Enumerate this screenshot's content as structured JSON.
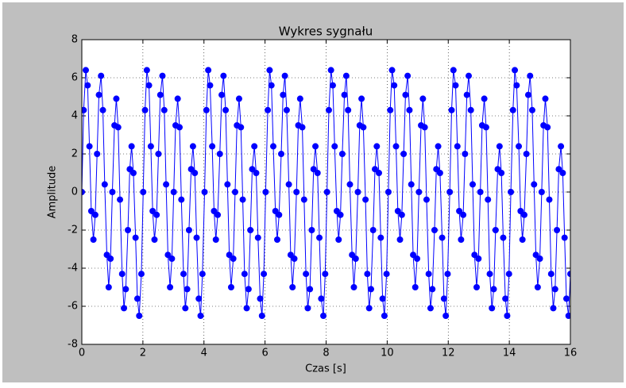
{
  "chart_data": {
    "type": "line",
    "title": "Wykres sygnału",
    "x_label": "Czas [s]",
    "y_label": "Amplitude",
    "x": [
      0,
      0.06,
      0.13,
      0.19,
      0.25,
      0.31,
      0.38,
      0.44,
      0.5,
      0.56,
      0.63,
      0.69,
      0.75,
      0.82,
      0.88,
      0.94,
      1.0,
      1.07,
      1.13,
      1.19,
      1.25,
      1.32,
      1.38,
      1.44,
      1.51,
      1.57,
      1.63,
      1.69,
      1.76,
      1.82,
      1.88,
      1.95,
      2.01,
      2.07,
      2.13,
      2.2,
      2.26,
      2.32,
      2.38,
      2.45,
      2.51,
      2.57,
      2.64,
      2.7,
      2.76,
      2.82,
      2.89,
      2.95,
      3.01,
      3.07,
      3.14,
      3.2,
      3.26,
      3.33,
      3.39,
      3.45,
      3.51,
      3.58,
      3.64,
      3.7,
      3.76,
      3.83,
      3.89,
      3.95,
      4.02,
      4.08,
      4.14,
      4.2,
      4.27,
      4.33,
      4.39,
      4.45,
      4.52,
      4.58,
      4.64,
      4.71,
      4.77,
      4.83,
      4.89,
      4.96,
      5.02,
      5.08,
      5.15,
      5.21,
      5.27,
      5.33,
      5.4,
      5.46,
      5.52,
      5.58,
      5.65,
      5.71,
      5.77,
      5.84,
      5.9,
      5.96,
      6.02,
      6.09,
      6.15,
      6.21,
      6.27,
      6.34,
      6.4,
      6.46,
      6.53,
      6.59,
      6.65,
      6.71,
      6.78,
      6.84,
      6.9,
      6.96,
      7.03,
      7.09,
      7.15,
      7.22,
      7.28,
      7.34,
      7.4,
      7.47,
      7.53,
      7.59,
      7.65,
      7.72,
      7.78,
      7.84,
      7.91,
      7.97,
      8.03,
      8.09,
      8.16,
      8.22,
      8.28,
      8.35,
      8.41,
      8.47,
      8.53,
      8.6,
      8.66,
      8.72,
      8.78,
      8.85,
      8.91,
      8.97,
      9.04,
      9.1,
      9.16,
      9.22,
      9.29,
      9.35,
      9.41,
      9.47,
      9.54,
      9.6,
      9.66,
      9.73,
      9.79,
      9.85,
      9.91,
      9.98,
      10.04,
      10.1,
      10.16,
      10.23,
      10.29,
      10.35,
      10.42,
      10.48,
      10.54,
      10.6,
      10.67,
      10.73,
      10.79,
      10.85,
      10.92,
      10.98,
      11.04,
      11.11,
      11.17,
      11.23,
      11.29,
      11.36,
      11.42,
      11.48,
      11.55,
      11.61,
      11.67,
      11.73,
      11.8,
      11.86,
      11.92,
      11.98,
      12.05,
      12.11,
      12.17,
      12.24,
      12.3,
      12.36,
      12.42,
      12.49,
      12.55,
      12.61,
      12.67,
      12.74,
      12.8,
      12.86,
      12.93,
      12.99,
      13.05,
      13.11,
      13.18,
      13.24,
      13.3,
      13.36,
      13.43,
      13.49,
      13.55,
      13.62,
      13.68,
      13.74,
      13.8,
      13.87,
      13.93,
      13.99,
      14.05,
      14.12,
      14.18,
      14.24,
      14.31,
      14.37,
      14.43,
      14.49,
      14.56,
      14.62,
      14.68,
      14.75,
      14.81,
      14.87,
      14.93,
      15.0,
      15.06,
      15.12,
      15.18,
      15.25,
      15.31,
      15.37,
      15.44,
      15.5,
      15.56,
      15.62,
      15.69,
      15.75,
      15.81,
      15.87,
      15.94,
      16
    ],
    "series": [
      {
        "color": "#0000ff",
        "marker": "o",
        "values": [
          0,
          4.3,
          6.4,
          5.6,
          2.4,
          -1.0,
          -2.5,
          -1.2,
          2.0,
          5.1,
          6.1,
          4.3,
          0.4,
          -3.3,
          -5.0,
          -3.5,
          0.0,
          3.5,
          4.9,
          3.4,
          -0.4,
          -4.3,
          -6.1,
          -5.1,
          -2.0,
          1.2,
          2.4,
          1.0,
          -2.4,
          -5.6,
          -6.5,
          -4.3,
          0,
          4.3,
          6.4,
          5.6,
          2.4,
          -1.0,
          -2.5,
          -1.2,
          2.0,
          5.1,
          6.1,
          4.3,
          0.4,
          -3.3,
          -5.0,
          -3.5,
          0.0,
          3.5,
          4.9,
          3.4,
          -0.4,
          -4.3,
          -6.1,
          -5.1,
          -2.0,
          1.2,
          2.4,
          1.0,
          -2.4,
          -5.6,
          -6.5,
          -4.3,
          0,
          4.3,
          6.4,
          5.6,
          2.4,
          -1.0,
          -2.5,
          -1.2,
          2.0,
          5.1,
          6.1,
          4.3,
          0.4,
          -3.3,
          -5.0,
          -3.5,
          0.0,
          3.5,
          4.9,
          3.4,
          -0.4,
          -4.3,
          -6.1,
          -5.1,
          -2.0,
          1.2,
          2.4,
          1.0,
          -2.4,
          -5.6,
          -6.5,
          -4.3,
          0,
          4.3,
          6.4,
          5.6,
          2.4,
          -1.0,
          -2.5,
          -1.2,
          2.0,
          5.1,
          6.1,
          4.3,
          0.4,
          -3.3,
          -5.0,
          -3.5,
          0.0,
          3.5,
          4.9,
          3.4,
          -0.4,
          -4.3,
          -6.1,
          -5.1,
          -2.0,
          1.2,
          2.4,
          1.0,
          -2.4,
          -5.6,
          -6.5,
          -4.3,
          0,
          4.3,
          6.4,
          5.6,
          2.4,
          -1.0,
          -2.5,
          -1.2,
          2.0,
          5.1,
          6.1,
          4.3,
          0.4,
          -3.3,
          -5.0,
          -3.5,
          0.0,
          3.5,
          4.9,
          3.4,
          -0.4,
          -4.3,
          -6.1,
          -5.1,
          -2.0,
          1.2,
          2.4,
          1.0,
          -2.4,
          -5.6,
          -6.5,
          -4.3,
          0,
          4.3,
          6.4,
          5.6,
          2.4,
          -1.0,
          -2.5,
          -1.2,
          2.0,
          5.1,
          6.1,
          4.3,
          0.4,
          -3.3,
          -5.0,
          -3.5,
          0.0,
          3.5,
          4.9,
          3.4,
          -0.4,
          -4.3,
          -6.1,
          -5.1,
          -2.0,
          1.2,
          2.4,
          1.0,
          -2.4,
          -5.6,
          -6.5,
          -4.3,
          0,
          4.3,
          6.4,
          5.6,
          2.4,
          -1.0,
          -2.5,
          -1.2,
          2.0,
          5.1,
          6.1,
          4.3,
          0.4,
          -3.3,
          -5.0,
          -3.5,
          0.0,
          3.5,
          4.9,
          3.4,
          -0.4,
          -4.3,
          -6.1,
          -5.1,
          -2.0,
          1.2,
          2.4,
          1.0,
          -2.4,
          -5.6,
          -6.5,
          -4.3,
          0,
          4.3,
          6.4,
          5.6,
          2.4,
          -1.0,
          -2.5,
          -1.2,
          2.0,
          5.1,
          6.1,
          4.3,
          0.4,
          -3.3,
          -5.0,
          -3.5,
          0.0,
          3.5,
          4.9,
          3.4,
          -0.4,
          -4.3,
          -6.1,
          -5.1,
          -2.0,
          1.2,
          2.4,
          1.0,
          -2.4,
          -5.6,
          -6.5,
          -4.3
        ]
      }
    ],
    "xlim": [
      0,
      16
    ],
    "ylim": [
      -8,
      8
    ],
    "xticks": [
      0,
      2,
      4,
      6,
      8,
      10,
      12,
      14,
      16
    ],
    "yticks": [
      -8,
      -6,
      -4,
      -2,
      0,
      2,
      4,
      6,
      8
    ],
    "grid": true
  }
}
